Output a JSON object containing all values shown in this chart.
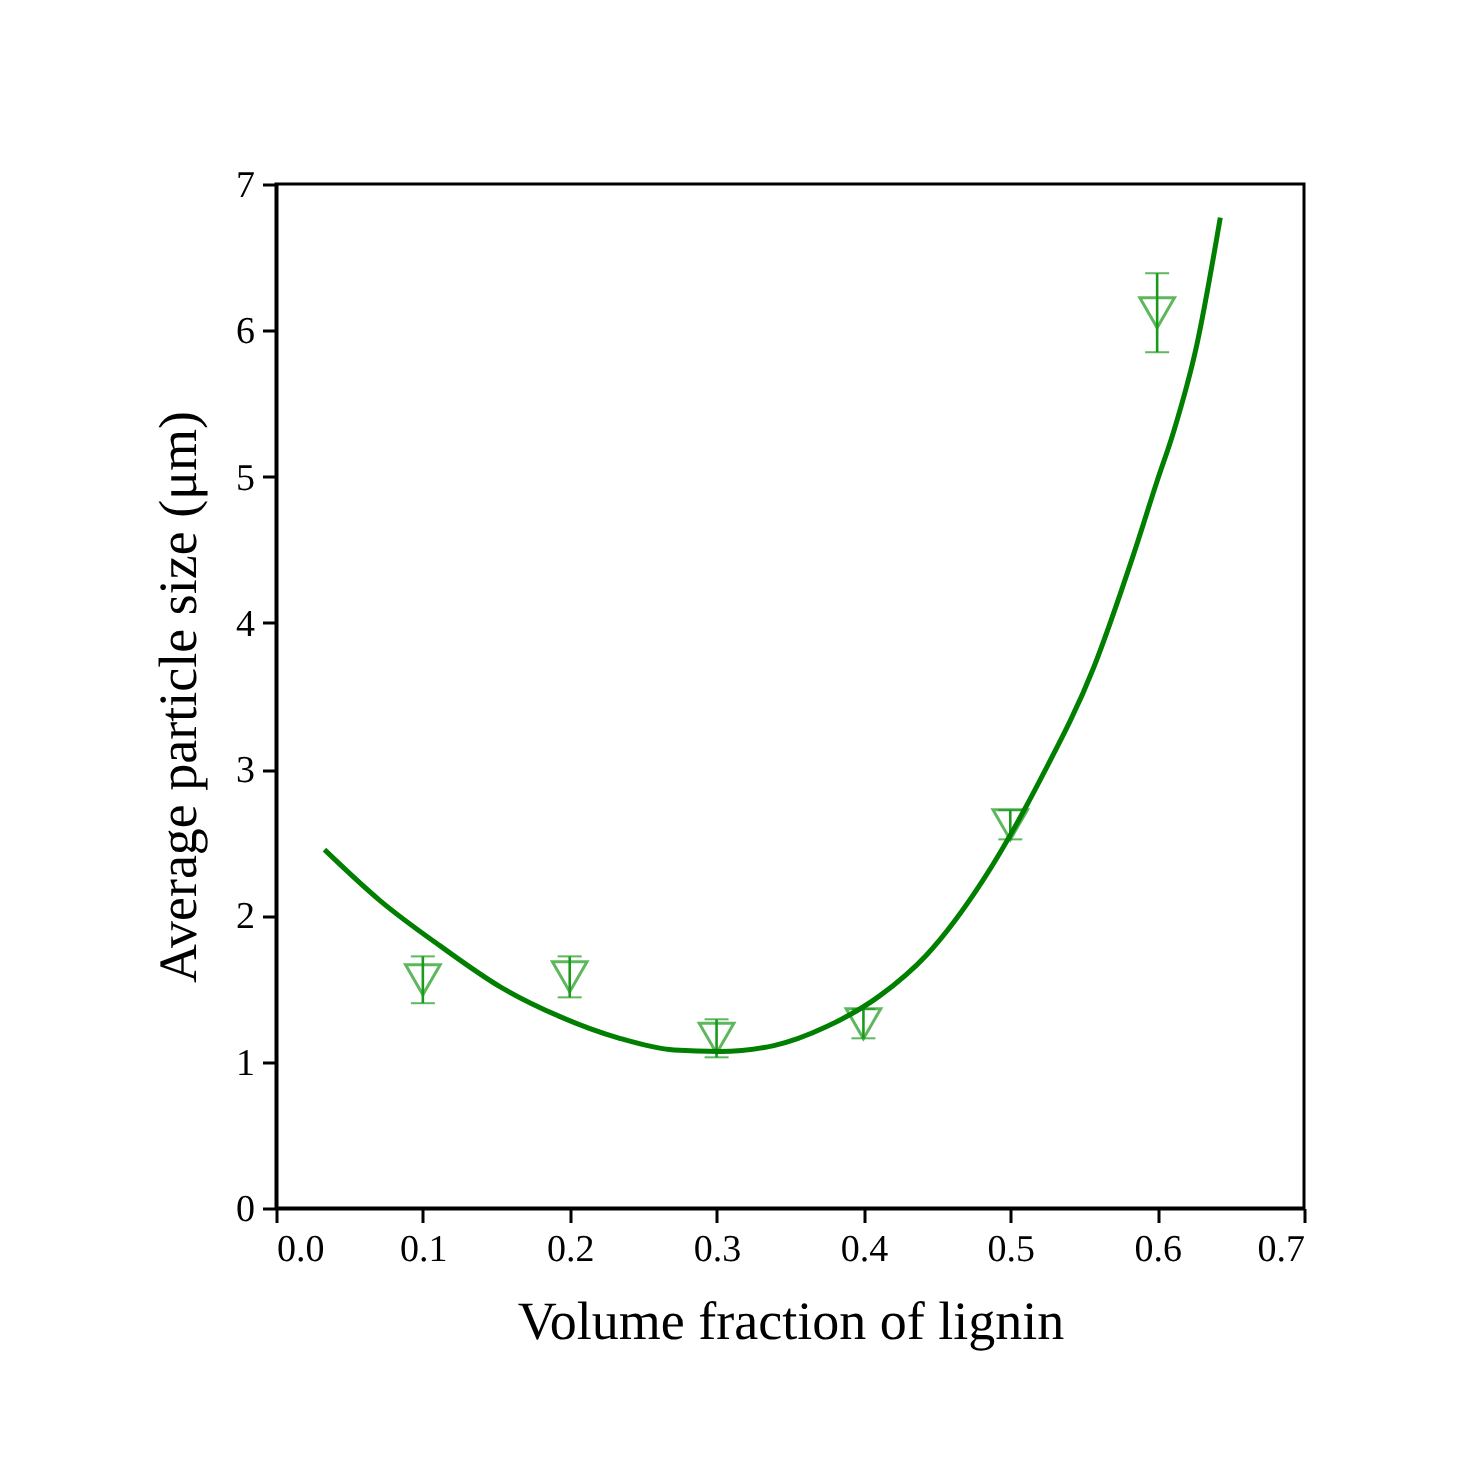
{
  "chart_data": {
    "type": "scatter",
    "xlabel": "Volume fraction of lignin",
    "ylabel": "Average particle size (μm)",
    "xlim": [
      0,
      0.7
    ],
    "ylim": [
      0,
      7
    ],
    "xticks": [
      {
        "value": 0,
        "label": "0.0"
      },
      0.1,
      0.2,
      0.3,
      0.4,
      0.5,
      0.6,
      0.7
    ],
    "yticks": [
      0,
      1,
      2,
      3,
      4,
      5,
      6,
      7
    ],
    "grid": false,
    "series": [
      {
        "color": "#1a9a1a",
        "marker": "triangle",
        "x": [
          0.1,
          0.2,
          0.3,
          0.4,
          0.5,
          0.6
        ],
        "values": [
          1.56,
          1.58,
          1.16,
          1.26,
          2.62,
          6.12
        ],
        "errors": [
          0.16,
          0.14,
          0.13,
          0.1,
          0.1,
          0.27
        ]
      },
      {
        "type": "line",
        "color": "#007f00",
        "marker": "none",
        "line_style": "solid",
        "x": [
          0.033,
          0.071,
          0.112,
          0.153,
          0.193,
          0.234,
          0.271,
          0.302,
          0.339,
          0.375,
          0.411,
          0.443,
          0.482,
          0.52,
          0.557,
          0.584,
          0.6,
          0.611,
          0.627,
          0.643
        ],
        "values": [
          2.45,
          2.1,
          1.79,
          1.51,
          1.31,
          1.16,
          1.08,
          1.07,
          1.11,
          1.24,
          1.45,
          1.73,
          2.25,
          2.92,
          3.7,
          4.47,
          4.97,
          5.3,
          5.9,
          6.77
        ]
      }
    ]
  }
}
